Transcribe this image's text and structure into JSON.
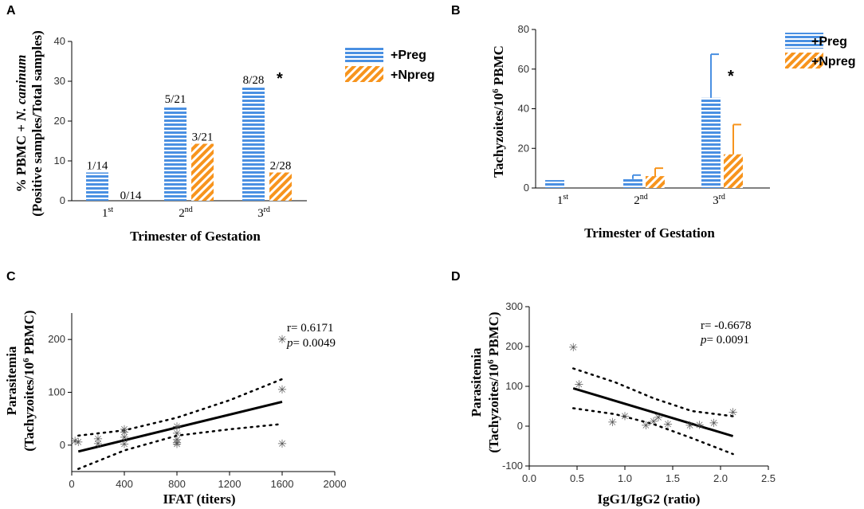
{
  "colors": {
    "preg": "#4a90e2",
    "npreg": "#f7941d",
    "line": "#000000",
    "marker": "#555555"
  },
  "chart_data": [
    {
      "panel": "A",
      "type": "bar",
      "ylabel_line1_pre": "% PBMC + ",
      "ylabel_line1_italic": "N. caninum",
      "ylabel_line2": "(Positive samples/Total samples)",
      "xlabel": "Trimester of Gestation",
      "ylim": [
        0,
        40
      ],
      "yticks": [
        0,
        10,
        20,
        30,
        40
      ],
      "categories": [
        {
          "base": "1",
          "sup": "st"
        },
        {
          "base": "2",
          "sup": "nd"
        },
        {
          "base": "3",
          "sup": "rd"
        }
      ],
      "series": [
        {
          "name": "+Preg",
          "values": [
            7.1,
            23.8,
            28.6
          ],
          "labels": [
            "1/14",
            "5/21",
            "8/28"
          ]
        },
        {
          "name": "+Npreg",
          "values": [
            0,
            14.3,
            7.1
          ],
          "labels": [
            "0/14",
            "3/21",
            "2/28"
          ]
        }
      ],
      "annotations": [
        {
          "text": "*",
          "category": 2
        }
      ]
    },
    {
      "panel": "B",
      "type": "bar",
      "ylabel_pre": "Tachyzoites/10",
      "ylabel_sup": "6",
      "ylabel_post": " PBMC",
      "xlabel": "Trimester of Gestation",
      "ylim": [
        0,
        80
      ],
      "yticks": [
        0,
        20,
        40,
        60,
        80
      ],
      "categories": [
        {
          "base": "1",
          "sup": "st"
        },
        {
          "base": "2",
          "sup": "nd"
        },
        {
          "base": "3",
          "sup": "rd"
        }
      ],
      "series": [
        {
          "name": "+Preg",
          "values": [
            4,
            4.5,
            45.5
          ],
          "errors": [
            0,
            2,
            22
          ]
        },
        {
          "name": "+Npreg",
          "values": [
            0,
            6,
            17
          ],
          "errors": [
            0,
            4,
            15
          ]
        }
      ],
      "annotations": [
        {
          "text": "*",
          "category": 2
        }
      ]
    },
    {
      "panel": "C",
      "type": "scatter",
      "ylabel_line1": "Parasitemia",
      "ylabel_pre": "(Tachyzoites/10",
      "ylabel_sup": "6",
      "ylabel_post": " PBMC)",
      "xlabel": "IFAT (titers)",
      "xlim": [
        0,
        2000
      ],
      "xticks": [
        0,
        400,
        800,
        1200,
        1600,
        2000
      ],
      "ylim": [
        -50,
        250
      ],
      "yticks": [
        0,
        100,
        200
      ],
      "stat_r": "r= 0.6171",
      "stat_p_sym": "p",
      "stat_p_val": "= 0.0049",
      "points": [
        [
          25,
          8
        ],
        [
          50,
          6
        ],
        [
          200,
          12
        ],
        [
          200,
          3
        ],
        [
          400,
          30
        ],
        [
          400,
          25
        ],
        [
          400,
          15
        ],
        [
          400,
          2
        ],
        [
          800,
          35
        ],
        [
          800,
          22
        ],
        [
          800,
          10
        ],
        [
          800,
          5
        ],
        [
          800,
          2
        ],
        [
          1600,
          200
        ],
        [
          1600,
          105
        ],
        [
          1600,
          3
        ]
      ],
      "fit": [
        [
          50,
          -12
        ],
        [
          1600,
          82
        ]
      ],
      "ci_upper": [
        [
          50,
          18
        ],
        [
          400,
          28
        ],
        [
          800,
          52
        ],
        [
          1200,
          85
        ],
        [
          1600,
          125
        ]
      ],
      "ci_lower": [
        [
          50,
          -45
        ],
        [
          400,
          -10
        ],
        [
          800,
          18
        ],
        [
          1200,
          30
        ],
        [
          1600,
          40
        ]
      ]
    },
    {
      "panel": "D",
      "type": "scatter",
      "ylabel_line1": "Parasitemia",
      "ylabel_pre": "(Tachyzoites/10",
      "ylabel_sup": "6",
      "ylabel_post": " PBMC)",
      "xlabel": "IgG1/IgG2 (ratio)",
      "xlim": [
        0,
        2.5
      ],
      "xticks": [
        "0.0",
        "0.5",
        "1.0",
        "1.5",
        "2.0",
        "2.5"
      ],
      "ylim": [
        -100,
        300
      ],
      "yticks": [
        -100,
        0,
        100,
        200,
        300
      ],
      "stat_r": "r= -0.6678",
      "stat_p_sym": "p",
      "stat_p_val": "= 0.0091",
      "points": [
        [
          0.46,
          198
        ],
        [
          0.52,
          105
        ],
        [
          0.87,
          10
        ],
        [
          1.0,
          25
        ],
        [
          1.22,
          2
        ],
        [
          1.3,
          12
        ],
        [
          1.35,
          22
        ],
        [
          1.45,
          5
        ],
        [
          1.68,
          2
        ],
        [
          1.78,
          3
        ],
        [
          1.93,
          8
        ],
        [
          2.13,
          35
        ]
      ],
      "fit": [
        [
          0.46,
          95
        ],
        [
          2.13,
          -25
        ]
      ],
      "ci_upper": [
        [
          0.46,
          145
        ],
        [
          0.9,
          110
        ],
        [
          1.3,
          70
        ],
        [
          1.7,
          38
        ],
        [
          2.13,
          25
        ]
      ],
      "ci_lower": [
        [
          0.46,
          45
        ],
        [
          0.9,
          30
        ],
        [
          1.3,
          5
        ],
        [
          1.7,
          -30
        ],
        [
          2.13,
          -70
        ]
      ]
    }
  ]
}
